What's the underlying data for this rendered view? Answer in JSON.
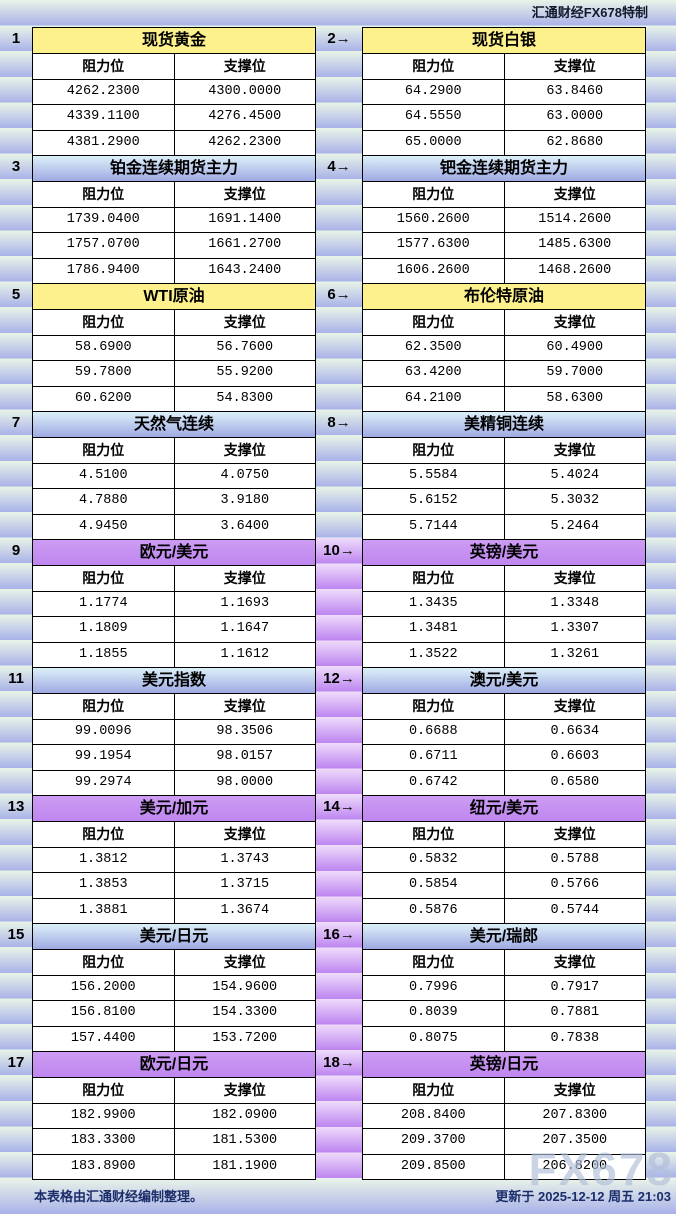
{
  "header": {
    "brand": "汇通财经FX678特制"
  },
  "columns": {
    "resistance": "阻力位",
    "support": "支撑位"
  },
  "watermark": "FX678",
  "footer": {
    "note": "本表格由汇通财经编制整理。",
    "updated": "更新于 2025-12-12 周五 21:03"
  },
  "colors": {
    "title_yellow": "#fcf18c",
    "title_blue_top": "#dcf0f8",
    "title_blue_bottom": "#9fa9e3",
    "title_purple": "#c792f2",
    "stripe_light": "#e9f4e8",
    "stripe_blue": "#a9b2e8",
    "stripe_purple_light": "#efdcfb",
    "stripe_purple": "#bd85f0",
    "footer_text": "#1c2d6b"
  },
  "panels": [
    {
      "label": "1",
      "title": "现货黄金",
      "theme": "yellow",
      "rows": [
        [
          "4262.2300",
          "4300.0000"
        ],
        [
          "4339.1100",
          "4276.4500"
        ],
        [
          "4381.2900",
          "4262.2300"
        ]
      ]
    },
    {
      "label": "2→",
      "title": "现货白银",
      "theme": "yellow",
      "rows": [
        [
          "64.2900",
          "63.8460"
        ],
        [
          "64.5550",
          "63.0000"
        ],
        [
          "65.0000",
          "62.8680"
        ]
      ]
    },
    {
      "label": "3",
      "title": "铂金连续期货主力",
      "theme": "blue",
      "rows": [
        [
          "1739.0400",
          "1691.1400"
        ],
        [
          "1757.0700",
          "1661.2700"
        ],
        [
          "1786.9400",
          "1643.2400"
        ]
      ]
    },
    {
      "label": "4→",
      "title": "钯金连续期货主力",
      "theme": "blue",
      "rows": [
        [
          "1560.2600",
          "1514.2600"
        ],
        [
          "1577.6300",
          "1485.6300"
        ],
        [
          "1606.2600",
          "1468.2600"
        ]
      ]
    },
    {
      "label": "5",
      "title": "WTI原油",
      "theme": "yellow",
      "rows": [
        [
          "58.6900",
          "56.7600"
        ],
        [
          "59.7800",
          "55.9200"
        ],
        [
          "60.6200",
          "54.8300"
        ]
      ]
    },
    {
      "label": "6→",
      "title": "布伦特原油",
      "theme": "yellow",
      "rows": [
        [
          "62.3500",
          "60.4900"
        ],
        [
          "63.4200",
          "59.7000"
        ],
        [
          "64.2100",
          "58.6300"
        ]
      ]
    },
    {
      "label": "7",
      "title": "天然气连续",
      "theme": "blue",
      "rows": [
        [
          "4.5100",
          "4.0750"
        ],
        [
          "4.7880",
          "3.9180"
        ],
        [
          "4.9450",
          "3.6400"
        ]
      ]
    },
    {
      "label": "8→",
      "title": "美精铜连续",
      "theme": "blue",
      "rows": [
        [
          "5.5584",
          "5.4024"
        ],
        [
          "5.6152",
          "5.3032"
        ],
        [
          "5.7144",
          "5.2464"
        ]
      ]
    },
    {
      "label": "9",
      "title": "欧元/美元",
      "theme": "purple",
      "rows": [
        [
          "1.1774",
          "1.1693"
        ],
        [
          "1.1809",
          "1.1647"
        ],
        [
          "1.1855",
          "1.1612"
        ]
      ]
    },
    {
      "label": "10→",
      "title": "英镑/美元",
      "theme": "purple",
      "rows": [
        [
          "1.3435",
          "1.3348"
        ],
        [
          "1.3481",
          "1.3307"
        ],
        [
          "1.3522",
          "1.3261"
        ]
      ]
    },
    {
      "label": "11",
      "title": "美元指数",
      "theme": "blue",
      "rows": [
        [
          "99.0096",
          "98.3506"
        ],
        [
          "99.1954",
          "98.0157"
        ],
        [
          "99.2974",
          "98.0000"
        ]
      ]
    },
    {
      "label": "12→",
      "title": "澳元/美元",
      "theme": "blue",
      "rows": [
        [
          "0.6688",
          "0.6634"
        ],
        [
          "0.6711",
          "0.6603"
        ],
        [
          "0.6742",
          "0.6580"
        ]
      ]
    },
    {
      "label": "13",
      "title": "美元/加元",
      "theme": "purple",
      "rows": [
        [
          "1.3812",
          "1.3743"
        ],
        [
          "1.3853",
          "1.3715"
        ],
        [
          "1.3881",
          "1.3674"
        ]
      ]
    },
    {
      "label": "14→",
      "title": "纽元/美元",
      "theme": "purple",
      "rows": [
        [
          "0.5832",
          "0.5788"
        ],
        [
          "0.5854",
          "0.5766"
        ],
        [
          "0.5876",
          "0.5744"
        ]
      ]
    },
    {
      "label": "15",
      "title": "美元/日元",
      "theme": "blue",
      "rows": [
        [
          "156.2000",
          "154.9600"
        ],
        [
          "156.8100",
          "154.3300"
        ],
        [
          "157.4400",
          "153.7200"
        ]
      ]
    },
    {
      "label": "16→",
      "title": "美元/瑞郎",
      "theme": "blue",
      "rows": [
        [
          "0.7996",
          "0.7917"
        ],
        [
          "0.8039",
          "0.7881"
        ],
        [
          "0.8075",
          "0.7838"
        ]
      ]
    },
    {
      "label": "17",
      "title": "欧元/日元",
      "theme": "purple",
      "rows": [
        [
          "182.9900",
          "182.0900"
        ],
        [
          "183.3300",
          "181.5300"
        ],
        [
          "183.8900",
          "181.1900"
        ]
      ]
    },
    {
      "label": "18→",
      "title": "英镑/日元",
      "theme": "purple",
      "rows": [
        [
          "208.8400",
          "207.8300"
        ],
        [
          "209.3700",
          "207.3500"
        ],
        [
          "209.8500",
          "206.8200"
        ]
      ]
    }
  ]
}
